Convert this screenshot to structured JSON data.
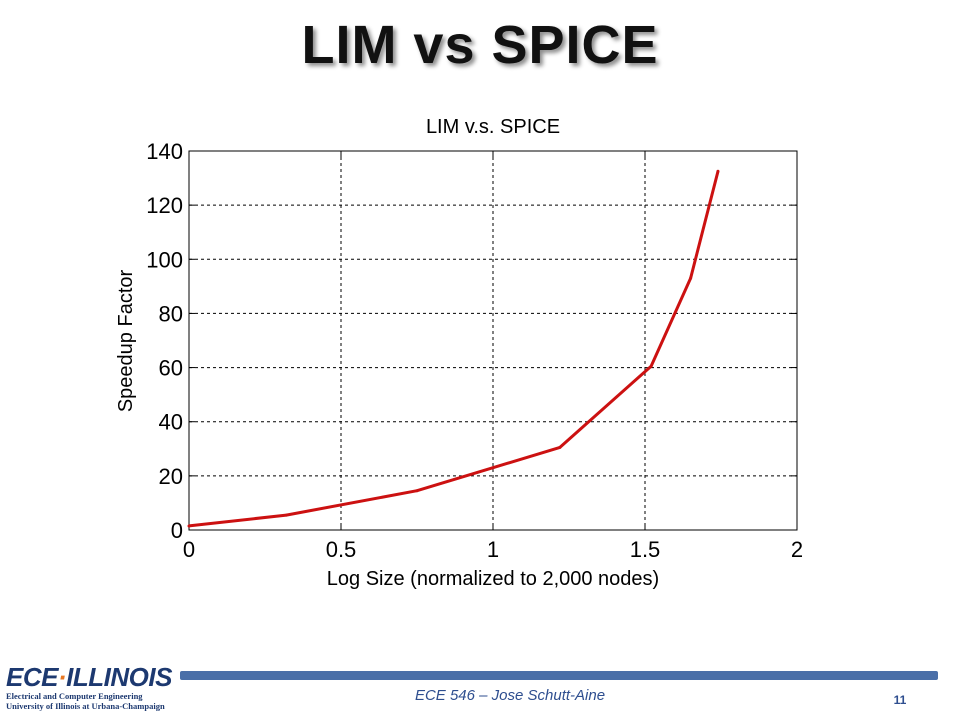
{
  "slide": {
    "title": "LIM vs SPICE",
    "footer": "ECE 546 – Jose Schutt-Aine",
    "page_number": "11"
  },
  "logo": {
    "brand_left": "ECE",
    "brand_right": "ILLINOIS",
    "line1": "Electrical and Computer Engineering",
    "line2": "University of Illinois at Urbana-Champaign"
  },
  "colors": {
    "line": "#cc1111",
    "footer_bar": "#4a6fa8",
    "brand": "#1d3970",
    "accent": "#e87722"
  },
  "chart_data": {
    "type": "line",
    "title": "LIM v.s. SPICE",
    "xlabel": "Log Size (normalized to 2,000 nodes)",
    "ylabel": "Speedup Factor",
    "xlim": [
      0,
      2
    ],
    "ylim": [
      0,
      140
    ],
    "x_ticks": [
      "0",
      "0.5",
      "1",
      "1.5",
      "2"
    ],
    "y_ticks": [
      "0",
      "20",
      "40",
      "60",
      "80",
      "100",
      "120",
      "140"
    ],
    "grid": true,
    "series": [
      {
        "x": [
          0,
          0.32,
          0.75,
          1.0,
          1.22,
          1.52,
          1.65,
          1.74
        ],
        "y": [
          1.5,
          5.5,
          14.5,
          23,
          30.5,
          60.5,
          93,
          132.5
        ]
      }
    ]
  }
}
